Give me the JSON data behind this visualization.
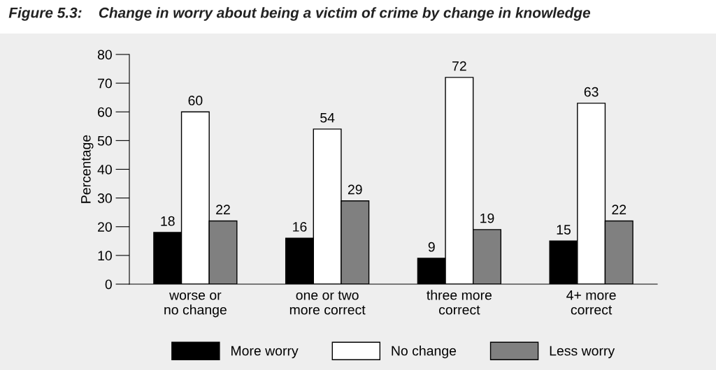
{
  "chart_data": {
    "type": "bar",
    "title": "Figure 5.3:    Change in worry about being a victim of crime by change in knowledge",
    "ylabel": "Percentage",
    "categories": [
      "worse or\nno change",
      "one or two\nmore correct",
      "three more\ncorrect",
      "4+ more\ncorrect"
    ],
    "series": [
      {
        "name": "More worry",
        "color": "#000000",
        "values": [
          18,
          16,
          9,
          15
        ]
      },
      {
        "name": "No change",
        "color": "#ffffff",
        "values": [
          60,
          54,
          72,
          63
        ]
      },
      {
        "name": "Less worry",
        "color": "#808080",
        "values": [
          22,
          29,
          19,
          22
        ]
      }
    ],
    "ylim": [
      0,
      80
    ],
    "yticks": [
      0,
      10,
      20,
      30,
      40,
      50,
      60,
      70,
      80
    ],
    "data_labels": true,
    "grid": false,
    "legend": "bottom"
  }
}
